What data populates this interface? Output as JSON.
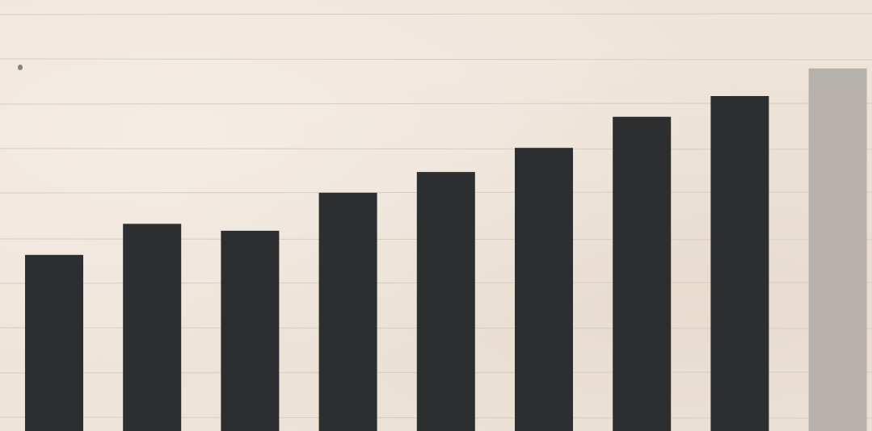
{
  "chart_data": {
    "type": "bar",
    "categories": [
      "",
      "",
      "",
      "",
      "",
      "",
      "",
      "",
      ""
    ],
    "series": [
      {
        "values": [
          51,
          60,
          58,
          69,
          75,
          82,
          91,
          97,
          105
        ],
        "colors": [
          "#2c2e30",
          "#2c2e30",
          "#2c2e30",
          "#2c2e30",
          "#2c2e30",
          "#2c2e30",
          "#2c2e30",
          "#2c2e30",
          "#b7b1ac"
        ]
      }
    ],
    "ylim": [
      0,
      115
    ],
    "grid": true,
    "legend": "none"
  },
  "colors": {
    "bar": "#2c2e30",
    "highlight_bar": "#b7b1ac",
    "background": "#eee4d9",
    "gridline": "#d8ccc0"
  }
}
